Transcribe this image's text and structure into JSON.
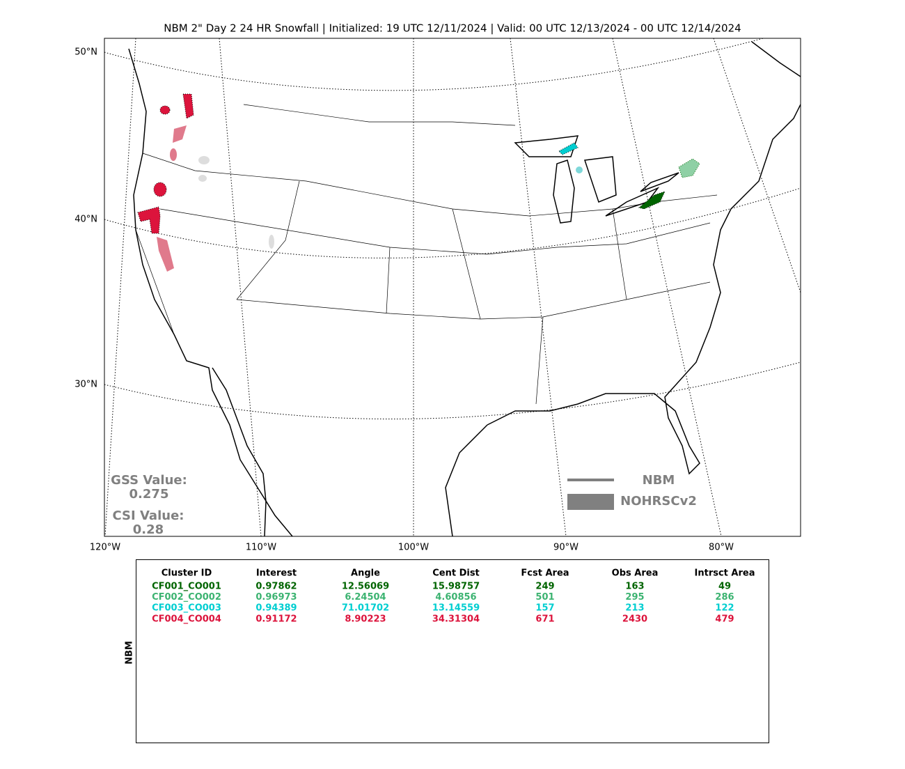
{
  "header": {
    "title": "NBM 2\" Day 2 24 HR Snowfall | Initialized: 19 UTC 12/11/2024 | Valid: 00 UTC 12/13/2024 - 00 UTC 12/14/2024"
  },
  "map": {
    "lat_labels": [
      "50°N",
      "40°N",
      "30°N"
    ],
    "lon_labels": [
      "120°W",
      "110°W",
      "100°W",
      "90°W",
      "80°W"
    ],
    "stats": {
      "gss_label": "GSS Value:",
      "gss_value": "0.275",
      "csi_label": "CSI Value:",
      "csi_value": "0.28"
    },
    "legend": [
      {
        "label": "NBM",
        "style": "line",
        "color": "#808080"
      },
      {
        "label": "NOHRSCv2",
        "style": "fill",
        "color": "#808080"
      }
    ]
  },
  "table": {
    "side_label": "NBM",
    "columns": [
      "Cluster ID",
      "Interest",
      "Angle",
      "Cent Dist",
      "Fcst Area",
      "Obs Area",
      "Intrsct Area"
    ],
    "rows": [
      {
        "color": "#006400",
        "cells": [
          "CF001_CO001",
          "0.97862",
          "12.56069",
          "15.98757",
          "249",
          "163",
          "49"
        ]
      },
      {
        "color": "#3cb371",
        "cells": [
          "CF002_CO002",
          "0.96973",
          "6.24504",
          "4.60856",
          "501",
          "295",
          "286"
        ]
      },
      {
        "color": "#00ced1",
        "cells": [
          "CF003_CO003",
          "0.94389",
          "71.01702",
          "13.14559",
          "157",
          "213",
          "122"
        ]
      },
      {
        "color": "#dc143c",
        "cells": [
          "CF004_CO004",
          "0.91172",
          "8.90223",
          "34.31304",
          "671",
          "2430",
          "479"
        ]
      }
    ]
  }
}
